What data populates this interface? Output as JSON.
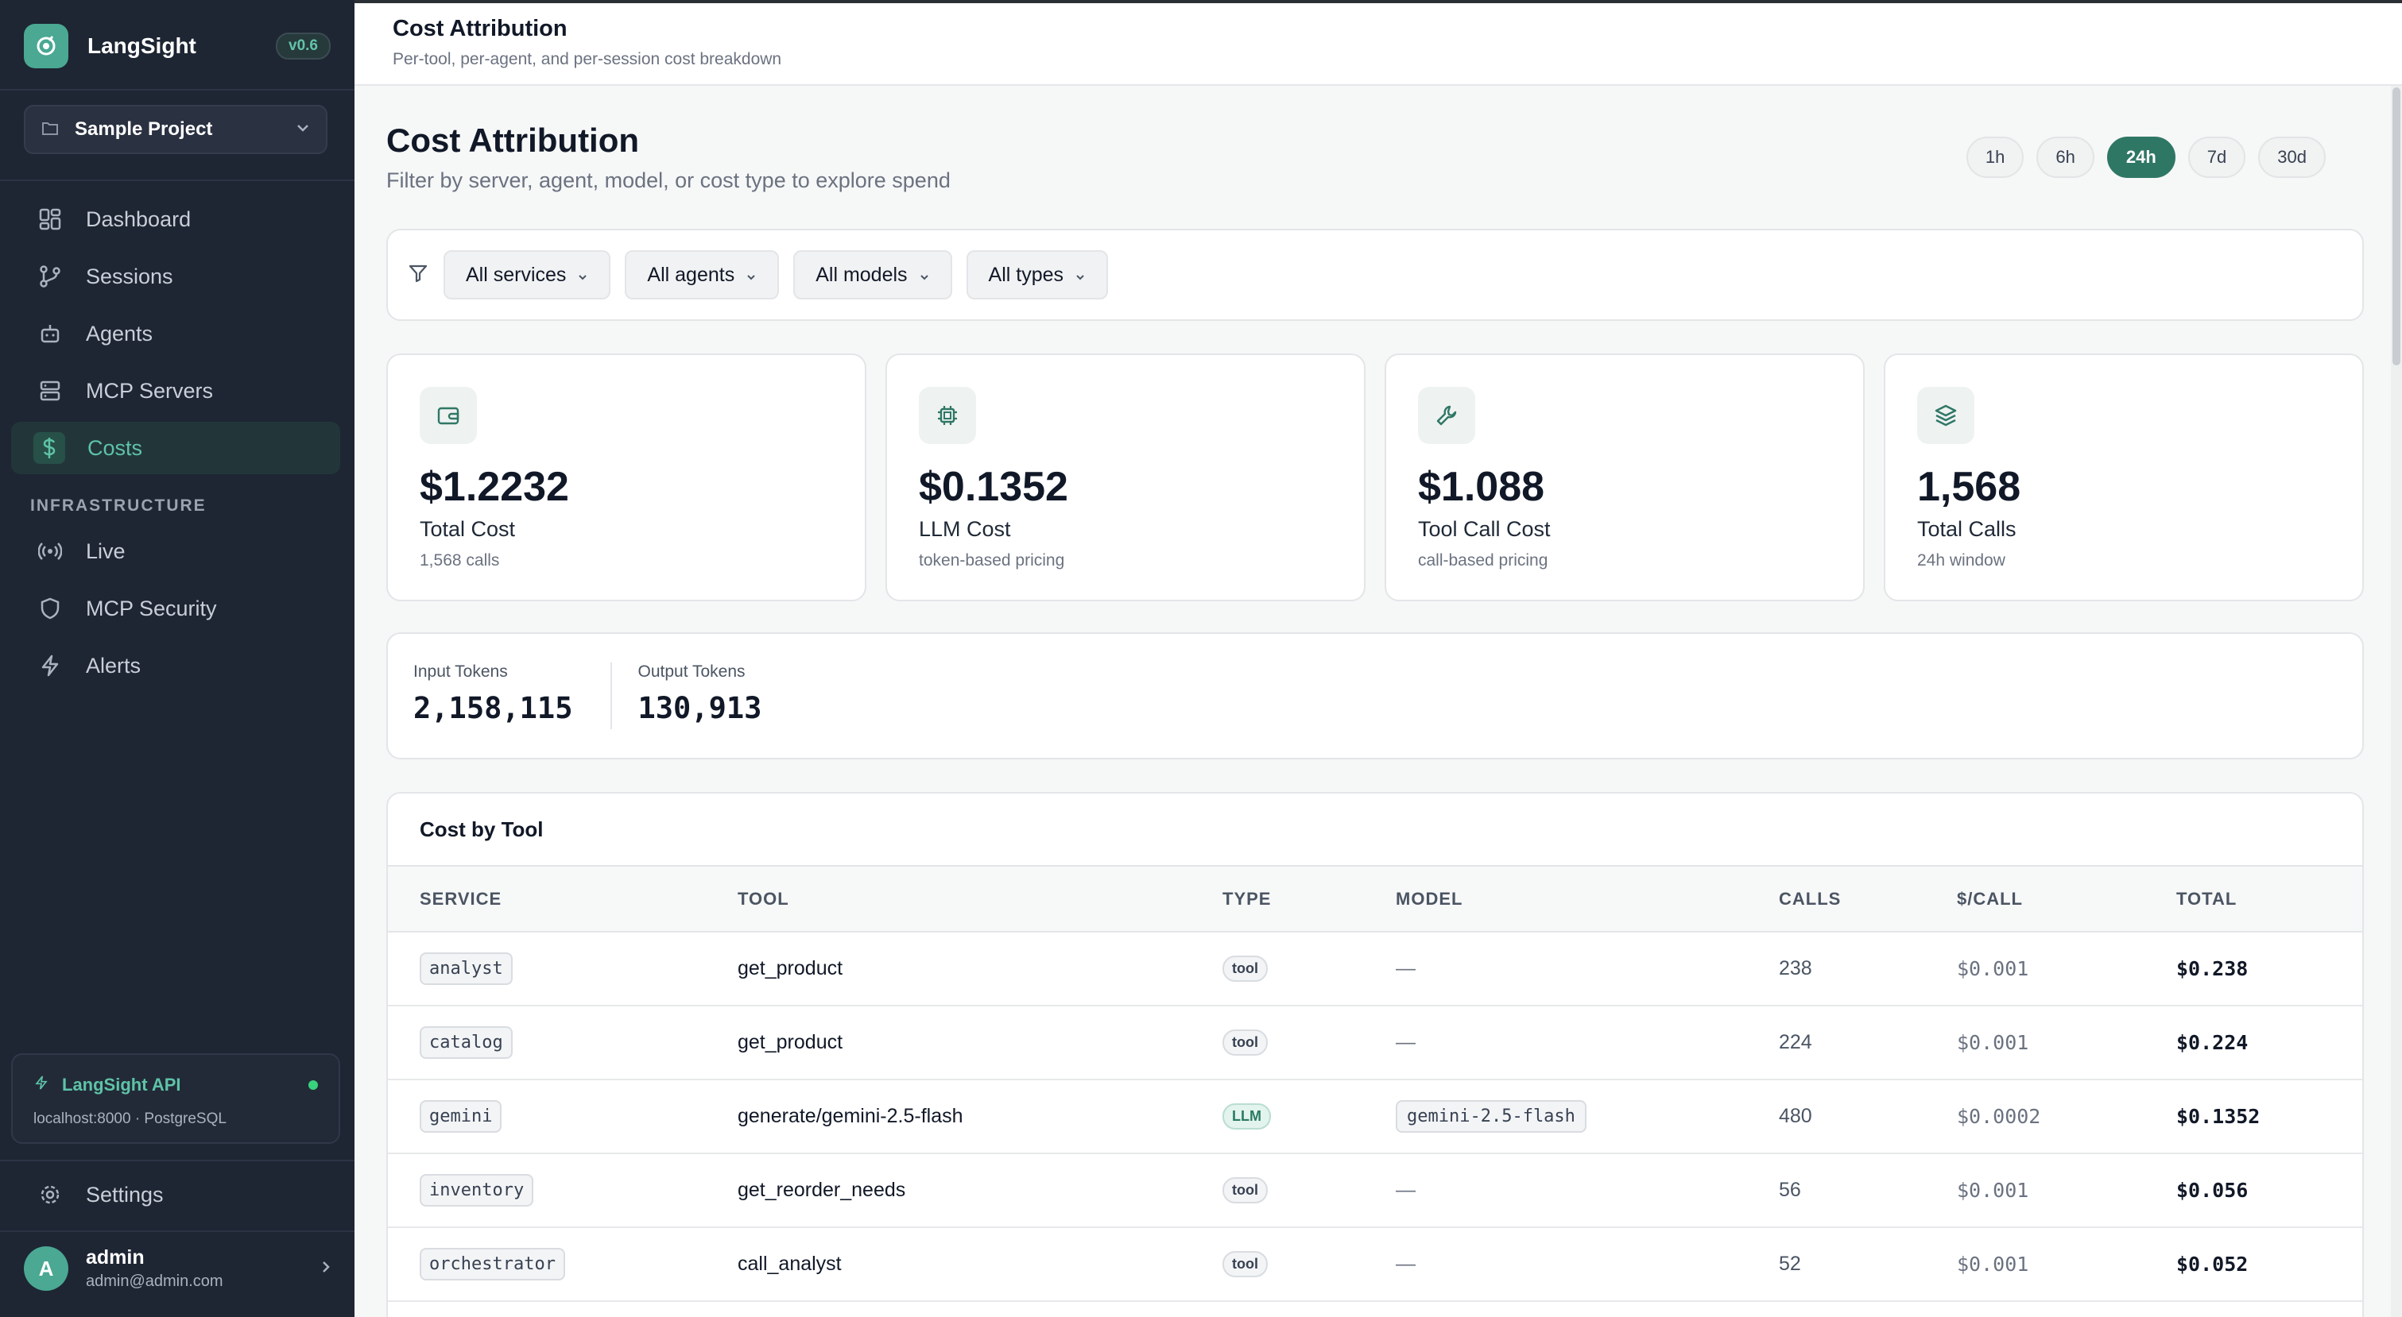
{
  "sidebar": {
    "brand": "LangSight",
    "version": "v0.6",
    "project": "Sample Project",
    "nav": [
      {
        "label": "Dashboard",
        "icon": "grid-icon"
      },
      {
        "label": "Sessions",
        "icon": "git-branch-icon"
      },
      {
        "label": "Agents",
        "icon": "robot-icon"
      },
      {
        "label": "MCP Servers",
        "icon": "server-icon"
      },
      {
        "label": "Costs",
        "icon": "dollar-icon",
        "active": true
      }
    ],
    "infra_label": "INFRASTRUCTURE",
    "infra_nav": [
      {
        "label": "Live",
        "icon": "broadcast-icon"
      },
      {
        "label": "MCP Security",
        "icon": "shield-icon"
      },
      {
        "label": "Alerts",
        "icon": "lightning-icon"
      }
    ],
    "api": {
      "title": "LangSight API",
      "sub": "localhost:8000 · PostgreSQL",
      "status_color": "#39d27d"
    },
    "settings": "Settings",
    "user": {
      "initial": "A",
      "name": "admin",
      "email": "admin@admin.com"
    }
  },
  "header": {
    "title": "Cost Attribution",
    "subtitle": "Per-tool, per-agent, and per-session cost breakdown"
  },
  "page": {
    "title": "Cost Attribution",
    "subtitle": "Filter by server, agent, model, or cost type to explore spend",
    "ranges": [
      "1h",
      "6h",
      "24h",
      "7d",
      "30d"
    ],
    "active_range": "24h"
  },
  "filters": [
    "All services",
    "All agents",
    "All models",
    "All types"
  ],
  "stats": [
    {
      "value": "$1.2232",
      "label": "Total Cost",
      "sub": "1,568 calls",
      "icon": "wallet-icon"
    },
    {
      "value": "$0.1352",
      "label": "LLM Cost",
      "sub": "token-based pricing",
      "icon": "cpu-icon"
    },
    {
      "value": "$1.088",
      "label": "Tool Call Cost",
      "sub": "call-based pricing",
      "icon": "wrench-icon"
    },
    {
      "value": "1,568",
      "label": "Total Calls",
      "sub": "24h window",
      "icon": "layers-icon"
    }
  ],
  "tokens": {
    "input_label": "Input Tokens",
    "input_value": "2,158,115",
    "output_label": "Output Tokens",
    "output_value": "130,913"
  },
  "table": {
    "title": "Cost by Tool",
    "columns": [
      "SERVICE",
      "TOOL",
      "TYPE",
      "MODEL",
      "CALLS",
      "$/CALL",
      "TOTAL"
    ],
    "rows": [
      {
        "service": "analyst",
        "tool": "get_product",
        "type": "tool",
        "model": "—",
        "calls": "238",
        "per_call": "$0.001",
        "total": "$0.238"
      },
      {
        "service": "catalog",
        "tool": "get_product",
        "type": "tool",
        "model": "—",
        "calls": "224",
        "per_call": "$0.001",
        "total": "$0.224"
      },
      {
        "service": "gemini",
        "tool": "generate/gemini-2.5-flash",
        "type": "LLM",
        "model": "gemini-2.5-flash",
        "calls": "480",
        "per_call": "$0.0002",
        "total": "$0.1352"
      },
      {
        "service": "inventory",
        "tool": "get_reorder_needs",
        "type": "tool",
        "model": "—",
        "calls": "56",
        "per_call": "$0.001",
        "total": "$0.056"
      },
      {
        "service": "orchestrator",
        "tool": "call_analyst",
        "type": "tool",
        "model": "—",
        "calls": "52",
        "per_call": "$0.001",
        "total": "$0.052"
      }
    ]
  },
  "colors": {
    "accent": "#2f7765",
    "sidebar_bg": "#1e2533",
    "active_nav_text": "#5ec3a7"
  }
}
